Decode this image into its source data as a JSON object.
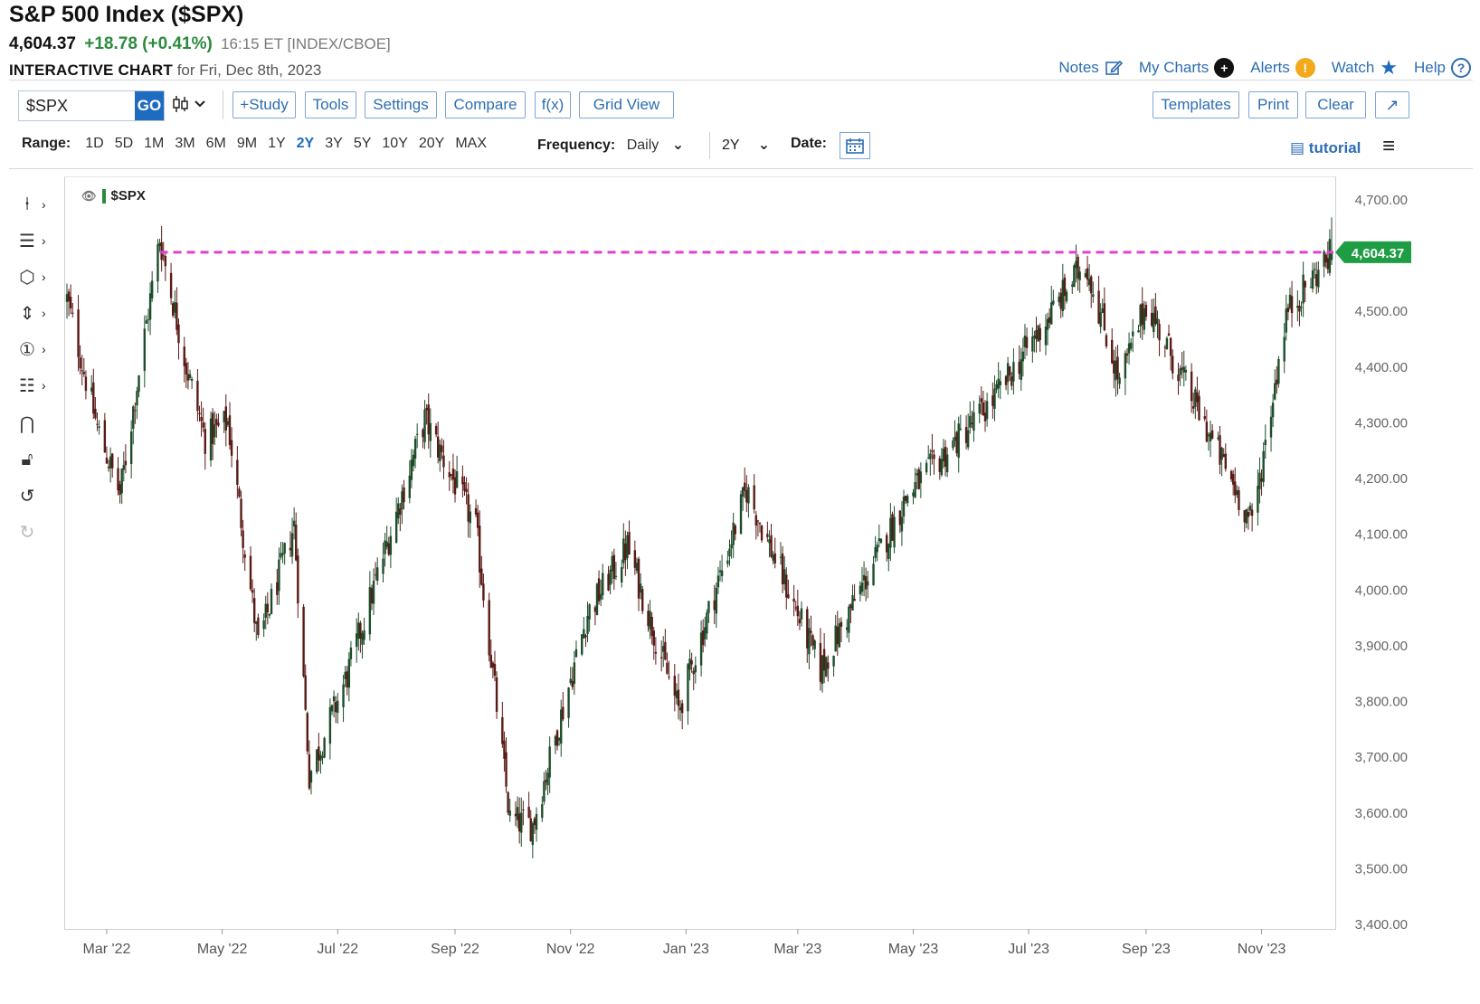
{
  "header": {
    "title": "S&P 500 Index ($SPX)",
    "last": "4,604.37",
    "change": "+18.78 (+0.41%)",
    "meta": "16:15 ET [INDEX/CBOE]",
    "chart_label": "INTERACTIVE CHART",
    "chart_date": "for Fri, Dec 8th, 2023"
  },
  "top_links": [
    {
      "label": "Notes",
      "icon": "pencil-icon"
    },
    {
      "label": "My Charts",
      "icon": "plus-circle-icon"
    },
    {
      "label": "Alerts",
      "icon": "exclamation-circle-icon"
    },
    {
      "label": "Watch",
      "icon": "star-icon"
    },
    {
      "label": "Help",
      "icon": "question-circle-icon"
    }
  ],
  "toolbar": {
    "symbol": "$SPX",
    "go": "GO",
    "chart_type_glyph": "⁰▯⌄",
    "study": "+Study",
    "tools": "Tools",
    "settings": "Settings",
    "compare": "Compare",
    "fx": "f(x)",
    "grid_view": "Grid View",
    "templates": "Templates",
    "print": "Print",
    "clear": "Clear",
    "expand": "↗"
  },
  "range": {
    "label": "Range:",
    "options": [
      "1D",
      "5D",
      "1M",
      "3M",
      "6M",
      "9M",
      "1Y",
      "2Y",
      "3Y",
      "5Y",
      "10Y",
      "20Y",
      "MAX"
    ],
    "active": "2Y",
    "frequency_label": "Frequency:",
    "frequency": "Daily",
    "period": "2Y",
    "date_label": "Date:",
    "tutorial": "tutorial"
  },
  "left_tools": [
    "crosshair-icon",
    "lines-icon",
    "shapes-icon",
    "measure-icon",
    "annotation-icon",
    "fibonacci-icon",
    "magnet-icon",
    "lock-icon",
    "undo-icon",
    "redo-icon"
  ],
  "chart_data": {
    "type": "candlestick",
    "series_name": "$SPX",
    "last_value": 4604.37,
    "last_label": "4,604.37",
    "ylim": [
      3400,
      4700
    ],
    "yticks": [
      "4,700.00",
      "4,600.00",
      "4,500.00",
      "4,400.00",
      "4,300.00",
      "4,200.00",
      "4,100.00",
      "4,000.00",
      "3,900.00",
      "3,800.00",
      "3,700.00",
      "3,600.00",
      "3,500.00",
      "3,400.00"
    ],
    "x_start": "2022-02-08",
    "x_end": "2023-12-08",
    "xticks": [
      {
        "date": "2022-03-01",
        "label": "Mar '22"
      },
      {
        "date": "2022-05-01",
        "label": "May '22"
      },
      {
        "date": "2022-07-01",
        "label": "Jul '22"
      },
      {
        "date": "2022-09-01",
        "label": "Sep '22"
      },
      {
        "date": "2022-11-01",
        "label": "Nov '22"
      },
      {
        "date": "2023-01-01",
        "label": "Jan '23"
      },
      {
        "date": "2023-03-01",
        "label": "Mar '23"
      },
      {
        "date": "2023-05-01",
        "label": "May '23"
      },
      {
        "date": "2023-07-01",
        "label": "Jul '23"
      },
      {
        "date": "2023-09-01",
        "label": "Sep '23"
      },
      {
        "date": "2023-11-01",
        "label": "Nov '23"
      }
    ],
    "closes": [
      {
        "date": "2022-02-08",
        "value": 4520
      },
      {
        "date": "2022-02-24",
        "value": 4290
      },
      {
        "date": "2022-03-08",
        "value": 4170
      },
      {
        "date": "2022-03-29",
        "value": 4630
      },
      {
        "date": "2022-04-12",
        "value": 4400
      },
      {
        "date": "2022-04-22",
        "value": 4270
      },
      {
        "date": "2022-05-04",
        "value": 4300
      },
      {
        "date": "2022-05-20",
        "value": 3900
      },
      {
        "date": "2022-06-08",
        "value": 4115
      },
      {
        "date": "2022-06-16",
        "value": 3666
      },
      {
        "date": "2022-07-06",
        "value": 3845
      },
      {
        "date": "2022-08-16",
        "value": 4305
      },
      {
        "date": "2022-09-12",
        "value": 4110
      },
      {
        "date": "2022-09-30",
        "value": 3585
      },
      {
        "date": "2022-10-12",
        "value": 3577
      },
      {
        "date": "2022-11-10",
        "value": 3956
      },
      {
        "date": "2022-12-01",
        "value": 4076
      },
      {
        "date": "2022-12-28",
        "value": 3783
      },
      {
        "date": "2023-02-02",
        "value": 4179
      },
      {
        "date": "2023-03-13",
        "value": 3855
      },
      {
        "date": "2023-04-28",
        "value": 4169
      },
      {
        "date": "2023-06-12",
        "value": 4338
      },
      {
        "date": "2023-07-31",
        "value": 4589
      },
      {
        "date": "2023-08-18",
        "value": 4370
      },
      {
        "date": "2023-09-01",
        "value": 4515
      },
      {
        "date": "2023-10-27",
        "value": 4117
      },
      {
        "date": "2023-11-14",
        "value": 4495
      },
      {
        "date": "2023-12-08",
        "value": 4604
      }
    ],
    "reference_line": {
      "value": 4604.37,
      "color": "#e040d0"
    },
    "colors": {
      "up": "#1d4d2b",
      "down": "#5a1a16",
      "last_badge": "#1f9d45"
    }
  }
}
